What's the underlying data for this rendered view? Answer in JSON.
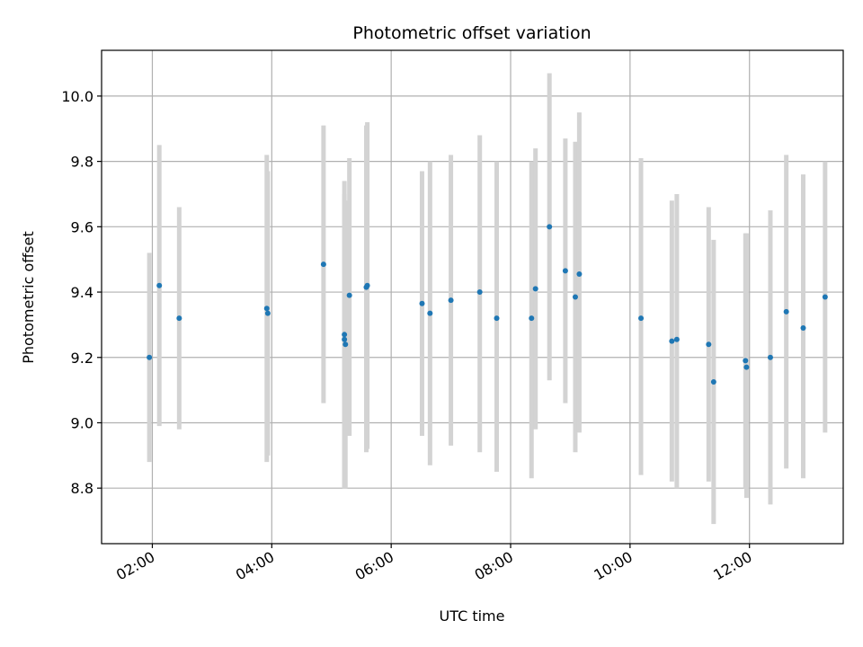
{
  "chart_data": {
    "type": "scatter",
    "title": "Photometric offset variation",
    "xlabel": "UTC time",
    "ylabel": "Photometric offset",
    "xlim_hours": [
      1.15,
      13.57
    ],
    "ylim": [
      8.63,
      10.14
    ],
    "grid": true,
    "x_ticks": [
      {
        "h": 2,
        "label": "02:00"
      },
      {
        "h": 4,
        "label": "04:00"
      },
      {
        "h": 6,
        "label": "06:00"
      },
      {
        "h": 8,
        "label": "08:00"
      },
      {
        "h": 10,
        "label": "10:00"
      },
      {
        "h": 12,
        "label": "12:00"
      }
    ],
    "y_ticks": [
      {
        "v": 8.8,
        "label": "8.8"
      },
      {
        "v": 9.0,
        "label": "9.0"
      },
      {
        "v": 9.2,
        "label": "9.2"
      },
      {
        "v": 9.4,
        "label": "9.4"
      },
      {
        "v": 9.6,
        "label": "9.6"
      },
      {
        "v": 9.8,
        "label": "9.8"
      },
      {
        "v": 10.0,
        "label": "10.0"
      }
    ],
    "colors": {
      "point": "#1f77b4",
      "errorbar": "#d3d3d3",
      "grid": "#b0b0b0",
      "axis": "#000000"
    },
    "points": [
      {
        "t": "01:57",
        "y": 9.2,
        "lo": 8.88,
        "hi": 9.52
      },
      {
        "t": "02:07",
        "y": 9.42,
        "lo": 8.99,
        "hi": 9.85
      },
      {
        "t": "02:27",
        "y": 9.32,
        "lo": 8.98,
        "hi": 9.66
      },
      {
        "t": "03:55",
        "y": 9.35,
        "lo": 8.88,
        "hi": 9.82
      },
      {
        "t": "03:56",
        "y": 9.335,
        "lo": 8.9,
        "hi": 9.77
      },
      {
        "t": "04:52",
        "y": 9.485,
        "lo": 9.06,
        "hi": 9.91
      },
      {
        "t": "05:13",
        "y": 9.27,
        "lo": 8.8,
        "hi": 9.74
      },
      {
        "t": "05:13",
        "y": 9.255,
        "lo": 8.8,
        "hi": 9.7
      },
      {
        "t": "05:14",
        "y": 9.24,
        "lo": 8.8,
        "hi": 9.68
      },
      {
        "t": "05:18",
        "y": 9.39,
        "lo": 8.96,
        "hi": 9.81
      },
      {
        "t": "05:35",
        "y": 9.415,
        "lo": 8.91,
        "hi": 9.91
      },
      {
        "t": "05:36",
        "y": 9.42,
        "lo": 8.92,
        "hi": 9.92
      },
      {
        "t": "06:31",
        "y": 9.365,
        "lo": 8.96,
        "hi": 9.77
      },
      {
        "t": "06:39",
        "y": 9.335,
        "lo": 8.87,
        "hi": 9.8
      },
      {
        "t": "07:00",
        "y": 9.375,
        "lo": 8.93,
        "hi": 9.82
      },
      {
        "t": "07:29",
        "y": 9.4,
        "lo": 8.91,
        "hi": 9.88
      },
      {
        "t": "07:46",
        "y": 9.32,
        "lo": 8.85,
        "hi": 9.8
      },
      {
        "t": "08:21",
        "y": 9.32,
        "lo": 8.83,
        "hi": 9.8
      },
      {
        "t": "08:25",
        "y": 9.41,
        "lo": 8.98,
        "hi": 9.84
      },
      {
        "t": "08:39",
        "y": 9.6,
        "lo": 9.13,
        "hi": 10.07
      },
      {
        "t": "08:55",
        "y": 9.465,
        "lo": 9.06,
        "hi": 9.87
      },
      {
        "t": "09:05",
        "y": 9.385,
        "lo": 8.91,
        "hi": 9.86
      },
      {
        "t": "09:09",
        "y": 9.455,
        "lo": 8.97,
        "hi": 9.95
      },
      {
        "t": "10:11",
        "y": 9.32,
        "lo": 8.84,
        "hi": 9.81
      },
      {
        "t": "10:42",
        "y": 9.25,
        "lo": 8.82,
        "hi": 9.68
      },
      {
        "t": "10:47",
        "y": 9.255,
        "lo": 8.8,
        "hi": 9.7
      },
      {
        "t": "11:19",
        "y": 9.24,
        "lo": 8.82,
        "hi": 9.66
      },
      {
        "t": "11:24",
        "y": 9.125,
        "lo": 8.69,
        "hi": 9.56
      },
      {
        "t": "11:56",
        "y": 9.19,
        "lo": 8.8,
        "hi": 9.58
      },
      {
        "t": "11:57",
        "y": 9.17,
        "lo": 8.77,
        "hi": 9.58
      },
      {
        "t": "12:21",
        "y": 9.2,
        "lo": 8.75,
        "hi": 9.65
      },
      {
        "t": "12:37",
        "y": 9.34,
        "lo": 8.86,
        "hi": 9.82
      },
      {
        "t": "12:54",
        "y": 9.29,
        "lo": 8.83,
        "hi": 9.76
      },
      {
        "t": "13:16",
        "y": 9.385,
        "lo": 8.97,
        "hi": 9.8
      }
    ]
  }
}
